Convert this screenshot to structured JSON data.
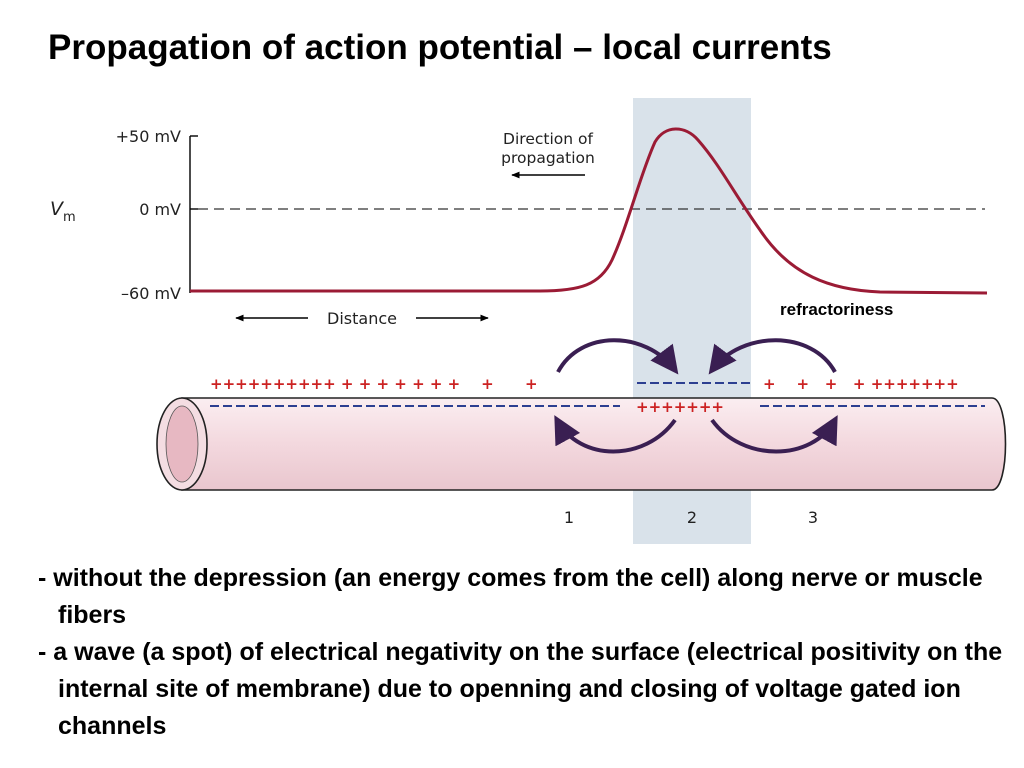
{
  "slide": {
    "title": "Propagation of action potential – local currents"
  },
  "figure": {
    "y_axis_symbol": "V",
    "y_axis_subscript": "m",
    "ticks": [
      "+50 mV",
      "0 mV",
      "–60 mV"
    ],
    "direction_label_line1": "Direction of",
    "direction_label_line2": "propagation",
    "distance_label": "Distance",
    "refractory_label": "refractoriness",
    "region_labels": [
      "1",
      "2",
      "3"
    ],
    "colors": {
      "trace": "#9b1b35",
      "charge_plus": "#cc2222",
      "charge_minus": "#2c3f91",
      "arrow": "#3a1f52",
      "highlight": "#d9e2ea",
      "axon_fill": "#f6dde2"
    }
  },
  "bullets": [
    "- without the depression (an energy comes from the cell) along nerve or muscle fibers",
    "- a wave (a spot) of electrical negativity on the surface (electrical positivity on the internal site of membrane) due to openning and closing of voltage gated ion channels"
  ]
}
